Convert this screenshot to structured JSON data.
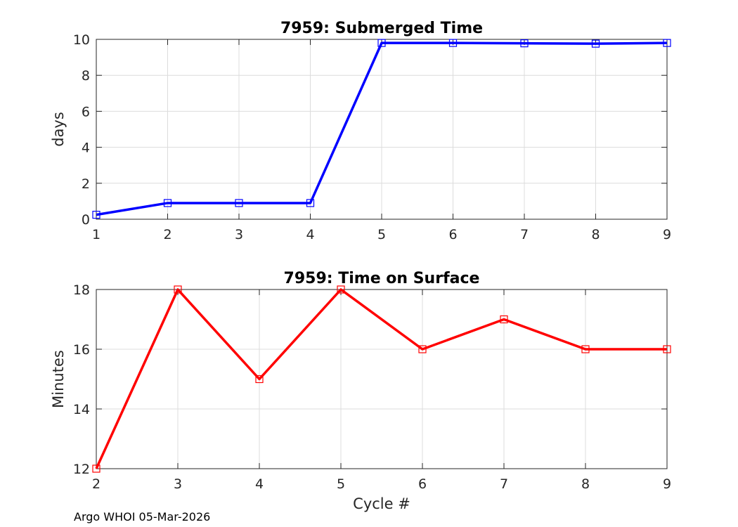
{
  "chart_data": [
    {
      "type": "line",
      "title": "7959: Submerged Time",
      "xlabel": "",
      "ylabel": "days",
      "x": [
        1,
        2,
        3,
        4,
        5,
        6,
        7,
        8,
        9
      ],
      "values": [
        0.25,
        0.9,
        0.9,
        0.9,
        9.8,
        9.8,
        9.78,
        9.76,
        9.8
      ],
      "xlim": [
        1,
        9
      ],
      "ylim": [
        0,
        10
      ],
      "xticks": [
        1,
        2,
        3,
        4,
        5,
        6,
        7,
        8,
        9
      ],
      "yticks": [
        0,
        2,
        4,
        6,
        8,
        10
      ],
      "grid": true,
      "color": "#0000ff",
      "marker": "square"
    },
    {
      "type": "line",
      "title": "7959: Time on Surface",
      "xlabel": "Cycle #",
      "ylabel": "Minutes",
      "x": [
        2,
        3,
        4,
        5,
        6,
        7,
        8,
        9
      ],
      "values": [
        12,
        18,
        15,
        18,
        16,
        17,
        16,
        16
      ],
      "xlim": [
        2,
        9
      ],
      "ylim": [
        12,
        18
      ],
      "xticks": [
        2,
        3,
        4,
        5,
        6,
        7,
        8,
        9
      ],
      "yticks": [
        12,
        14,
        16,
        18
      ],
      "grid": true,
      "color": "#ff0000",
      "marker": "square"
    }
  ],
  "footer": "Argo WHOI 05-Mar-2026"
}
